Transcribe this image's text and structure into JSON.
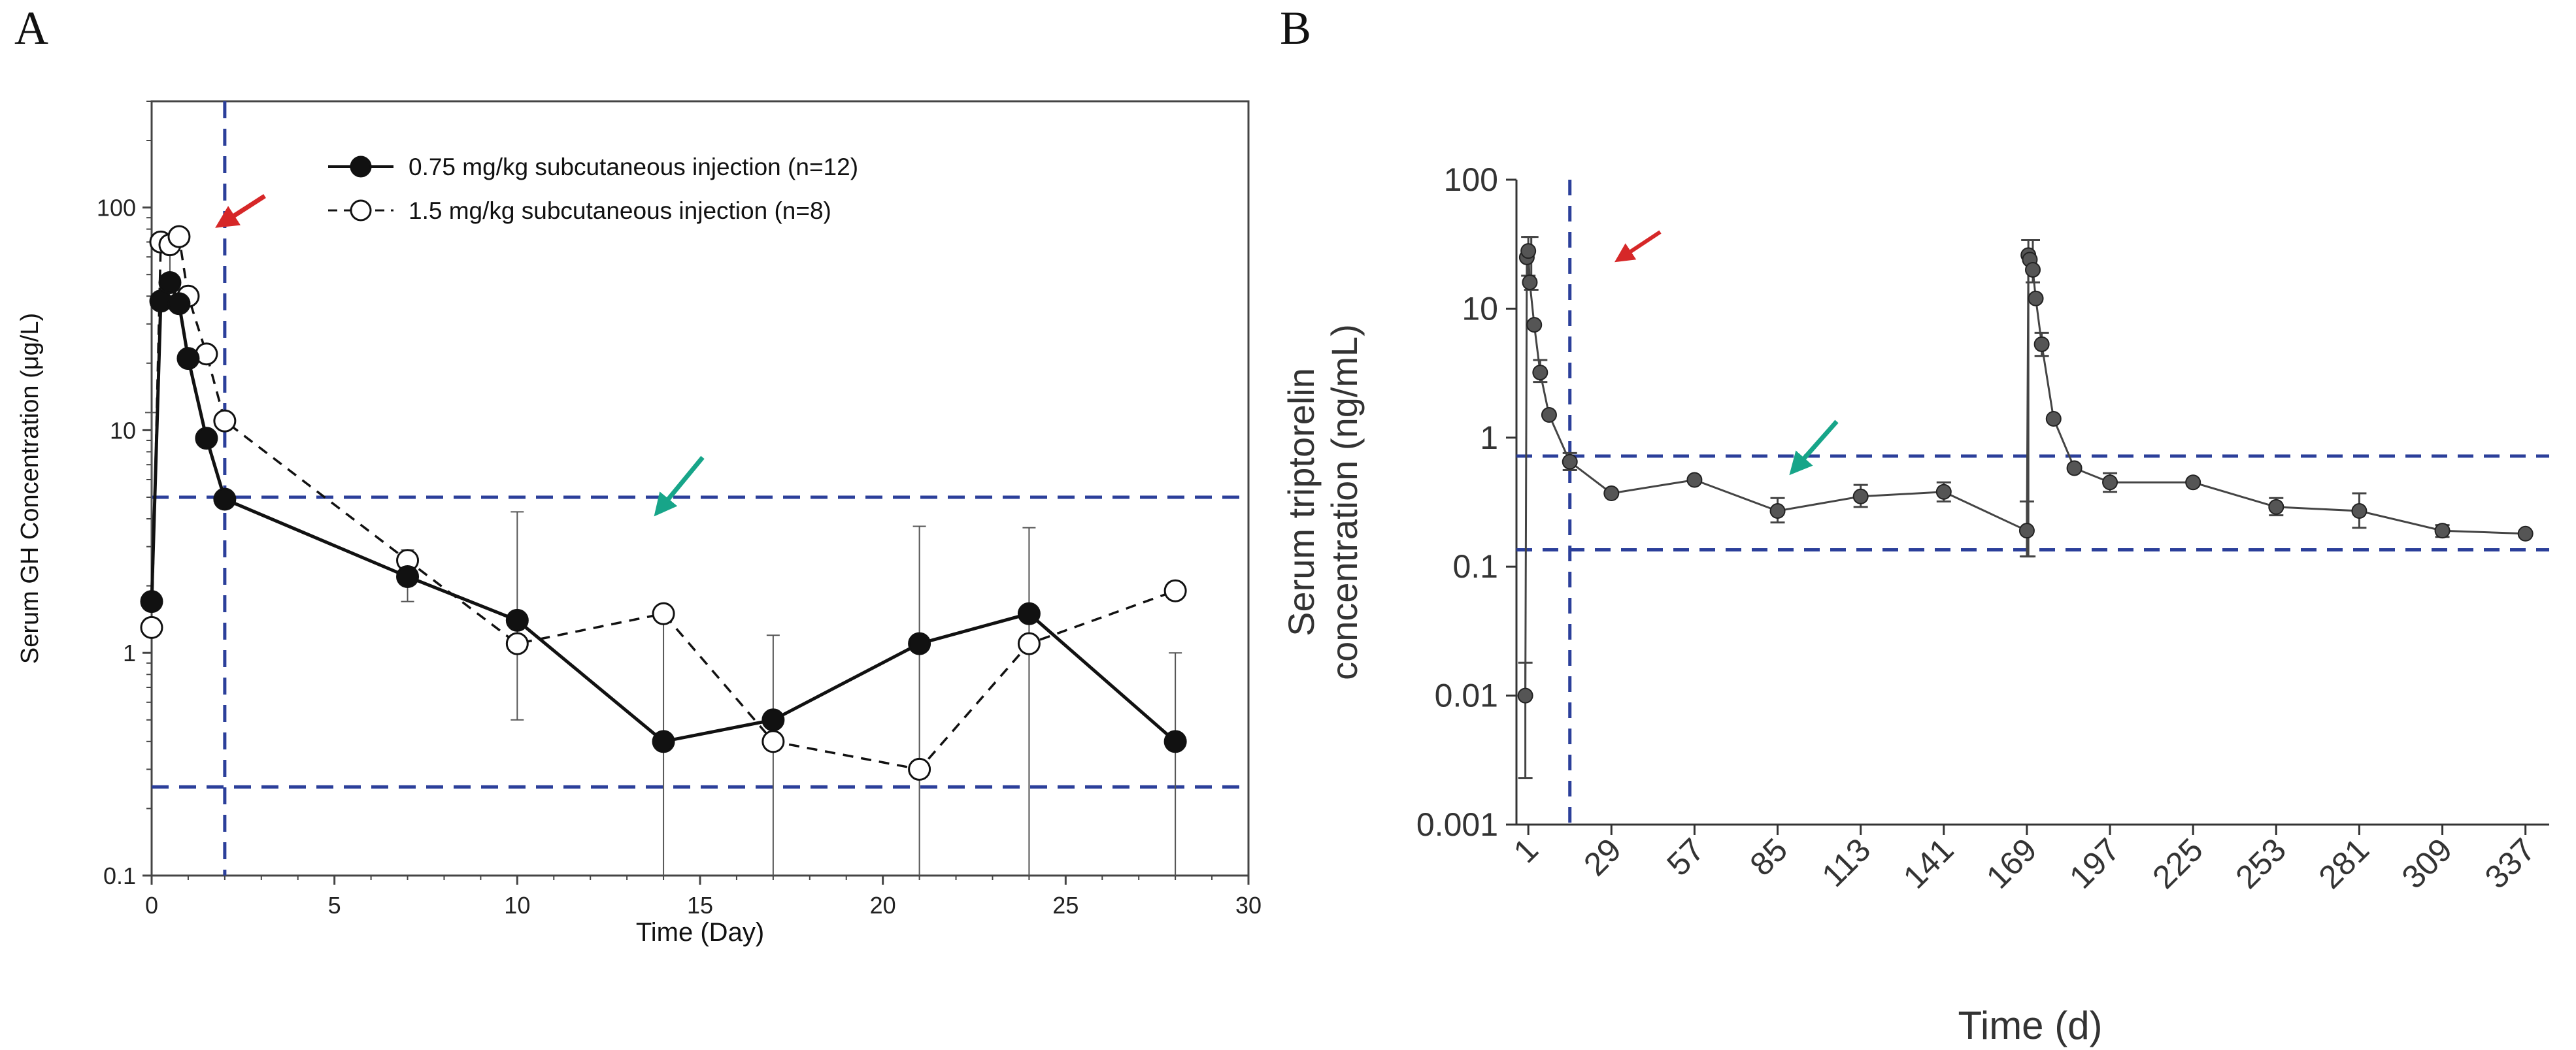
{
  "panels": {
    "a_label": "A",
    "b_label": "B"
  },
  "chart_data": [
    {
      "id": "A",
      "type": "line",
      "yscale": "log",
      "xlabel": "Time (Day)",
      "ylabel": "Serum GH Concentration (μg/L)",
      "xlim": [
        0,
        30
      ],
      "ylim": [
        0.1,
        300
      ],
      "xticks": [
        0,
        5,
        10,
        15,
        20,
        25,
        30
      ],
      "yticks": [
        0.1,
        1,
        10,
        100
      ],
      "ytick_labels": [
        "0.1",
        "1",
        "10",
        "100"
      ],
      "series": [
        {
          "name": "0.75 mg/kg subcutaneous injection (n=12)",
          "style": "solid",
          "marker": "filled",
          "points": [
            [
              0,
              1.7
            ],
            [
              0.25,
              38
            ],
            [
              0.5,
              46
            ],
            [
              0.75,
              37
            ],
            [
              1,
              21
            ],
            [
              1.5,
              9.2
            ],
            [
              2,
              4.9
            ],
            [
              7,
              2.2
            ],
            [
              10,
              1.4
            ],
            [
              14,
              0.4
            ],
            [
              17,
              0.5
            ],
            [
              21,
              1.1
            ],
            [
              24,
              1.5
            ],
            [
              28,
              0.4
            ]
          ],
          "errors_upper": [
            [
              0,
              12
            ],
            [
              0.5,
              72
            ],
            [
              7,
              2.9
            ],
            [
              10,
              4.3
            ],
            [
              14,
              1.55
            ],
            [
              17,
              1.2
            ],
            [
              21,
              3.7
            ],
            [
              24,
              3.65
            ],
            [
              28,
              1.0
            ]
          ],
          "errors_lower": [
            [
              7,
              1.7
            ],
            [
              10,
              0.5
            ],
            [
              14,
              0.1
            ],
            [
              17,
              0.1
            ],
            [
              21,
              0.1
            ],
            [
              24,
              0.1
            ],
            [
              28,
              0.1
            ]
          ]
        },
        {
          "name": "1.5 mg/kg subcutaneous injection (n=8)",
          "style": "dashed",
          "marker": "open",
          "points": [
            [
              0,
              1.3
            ],
            [
              0.25,
              70
            ],
            [
              0.5,
              68
            ],
            [
              0.75,
              74
            ],
            [
              1,
              40
            ],
            [
              1.5,
              22
            ],
            [
              2,
              11
            ],
            [
              7,
              2.6
            ],
            [
              10,
              1.1
            ],
            [
              14,
              1.5
            ],
            [
              17,
              0.4
            ],
            [
              21,
              0.3
            ],
            [
              24,
              1.1
            ],
            [
              28,
              1.9
            ]
          ],
          "errors_upper": [],
          "errors_lower": []
        }
      ],
      "reference_lines": {
        "vertical_x": [
          2
        ],
        "horizontal_y": [
          5,
          0.25
        ]
      },
      "annotations": [
        {
          "type": "arrow",
          "color": "#d62728",
          "near": [
            2.2,
            90
          ]
        },
        {
          "type": "arrow",
          "color": "#17a589",
          "near": [
            15,
            4
          ]
        }
      ]
    },
    {
      "id": "B",
      "type": "line",
      "yscale": "log",
      "xlabel": "Time (d)",
      "ylabel_line1": "Serum triptorelin",
      "ylabel_line2": "concentration (ng/mL)",
      "xlim": [
        -3,
        345
      ],
      "ylim": [
        0.001,
        100
      ],
      "xticks": [
        1,
        29,
        57,
        85,
        113,
        141,
        169,
        197,
        225,
        253,
        281,
        309,
        337
      ],
      "yticks": [
        0.001,
        0.01,
        0.1,
        1,
        10,
        100
      ],
      "ytick_labels": [
        "0.001",
        "0.01",
        "0.1",
        "1",
        "10",
        "100"
      ],
      "series": [
        {
          "name": "Serum triptorelin",
          "points": [
            [
              0,
              0.01
            ],
            [
              0.5,
              25
            ],
            [
              1,
              28
            ],
            [
              1.5,
              16
            ],
            [
              3,
              7.5
            ],
            [
              5,
              3.2
            ],
            [
              8,
              1.5
            ],
            [
              15,
              0.65
            ],
            [
              29,
              0.37
            ],
            [
              57,
              0.47
            ],
            [
              85,
              0.27
            ],
            [
              113,
              0.35
            ],
            [
              141,
              0.38
            ],
            [
              169,
              0.19
            ],
            [
              169.5,
              26
            ],
            [
              170,
              24
            ],
            [
              171,
              20
            ],
            [
              172,
              12
            ],
            [
              174,
              5.3
            ],
            [
              178,
              1.4
            ],
            [
              185,
              0.58
            ],
            [
              197,
              0.45
            ],
            [
              225,
              0.45
            ],
            [
              253,
              0.29
            ],
            [
              281,
              0.27
            ],
            [
              309,
              0.19
            ],
            [
              337,
              0.18
            ]
          ],
          "errors": [
            [
              0,
              0.0023,
              0.018
            ],
            [
              1,
              18,
              36
            ],
            [
              2,
              14,
              36
            ],
            [
              5,
              2.7,
              4
            ],
            [
              15,
              0.56,
              0.76
            ],
            [
              85,
              0.22,
              0.34
            ],
            [
              113,
              0.29,
              0.43
            ],
            [
              141,
              0.32,
              0.45
            ],
            [
              169,
              0.12,
              0.32
            ],
            [
              169.5,
              0.12,
              34
            ],
            [
              171,
              16,
              34
            ],
            [
              174,
              4.3,
              6.5
            ],
            [
              197,
              0.38,
              0.53
            ],
            [
              253,
              0.25,
              0.34
            ],
            [
              281,
              0.2,
              0.37
            ],
            [
              309,
              0.17,
              0.21
            ]
          ]
        }
      ],
      "reference_lines": {
        "vertical_x": [
          15
        ],
        "horizontal_y": [
          0.72,
          0.135
        ]
      },
      "annotations": [
        {
          "type": "arrow",
          "color": "#d62728",
          "near": [
            20,
            30
          ]
        },
        {
          "type": "arrow",
          "color": "#17a589",
          "near": [
            85,
            0.5
          ]
        }
      ]
    }
  ]
}
